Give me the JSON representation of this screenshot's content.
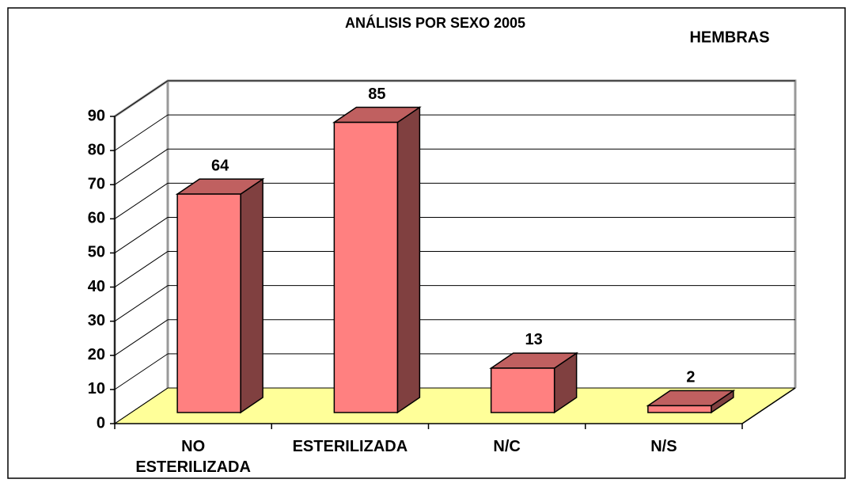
{
  "chart_data": {
    "type": "bar3d",
    "title": "ANÁLISIS POR SEXO 2005",
    "subtitle": "HEMBRAS",
    "categories": [
      "NO ESTERILIZADA",
      "ESTERILIZADA",
      "N/C",
      "N/S"
    ],
    "values": [
      64,
      85,
      13,
      2
    ],
    "color": "#ff8080",
    "side_color": "#804040",
    "top_color": "#c06060",
    "floor_color": "#ffff99",
    "ylim": [
      0,
      90
    ],
    "yticks": [
      0,
      10,
      20,
      30,
      40,
      50,
      60,
      70,
      80,
      90
    ],
    "grid": true
  }
}
